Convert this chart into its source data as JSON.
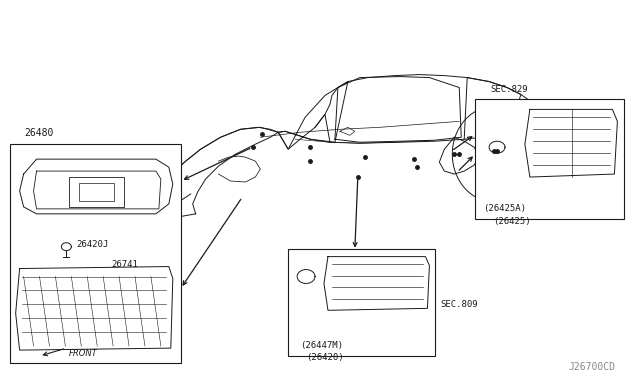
{
  "watermark": "J26700CD",
  "bg_color": "#ffffff",
  "line_color": "#1a1a1a",
  "part_number_main": "26480",
  "part_labels_left_box": [
    "26420J",
    "26741"
  ],
  "front_label": "FRONT",
  "sec_label_bottom": "SEC.809",
  "sec_label_right": "SEC.829",
  "part_labels_bottom_box": [
    "(26447M)",
    "(26420)"
  ],
  "part_labels_right_box": [
    "(26425A)",
    "(26425)"
  ],
  "car_color": "#1a1a1a",
  "box_edge_color": "#1a1a1a",
  "arrow_color": "#1a1a1a"
}
